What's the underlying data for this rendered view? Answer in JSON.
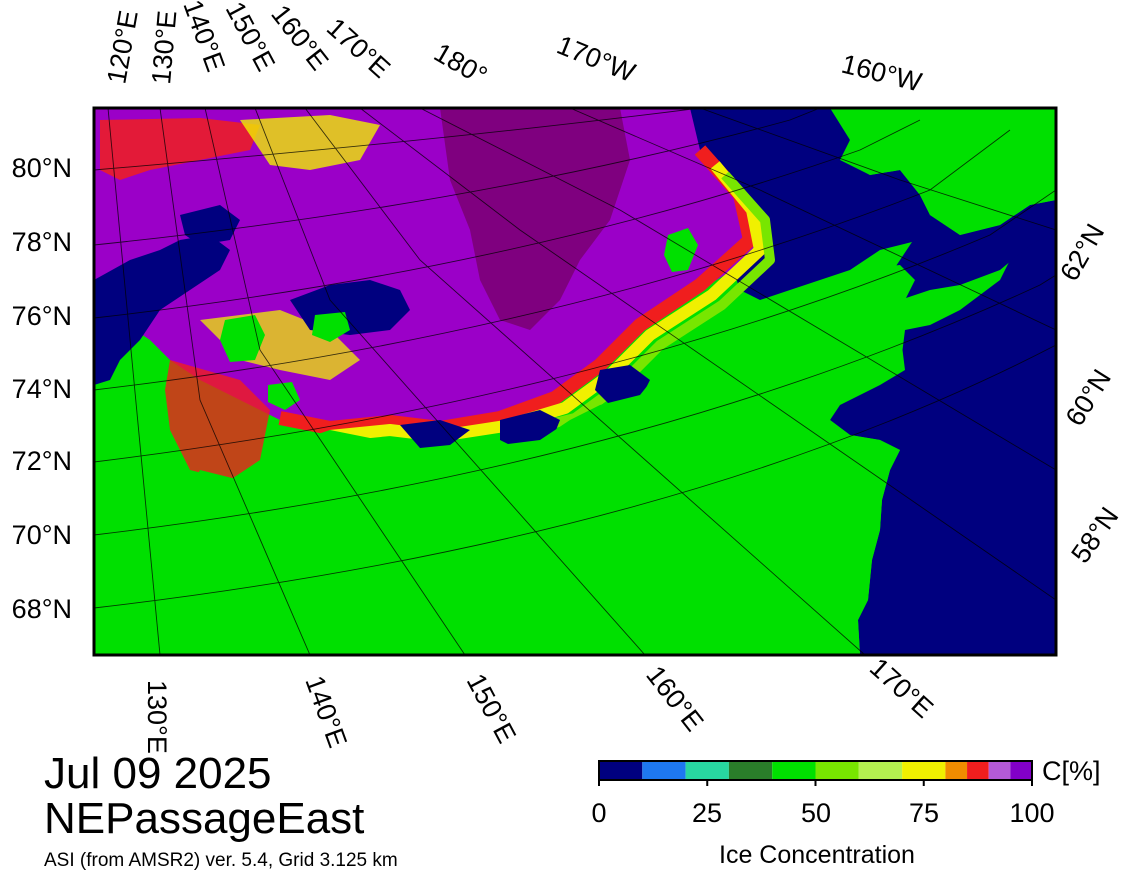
{
  "map": {
    "top_lon_labels": [
      "120°E",
      "130°E",
      "140°E",
      "150°E",
      "160°E",
      "170°E",
      "180°",
      "170°W",
      "160°W"
    ],
    "bottom_lon_labels": [
      "130°E",
      "140°E",
      "150°E",
      "160°E",
      "170°E"
    ],
    "left_lat_labels": [
      "80°N",
      "78°N",
      "76°N",
      "74°N",
      "72°N",
      "70°N",
      "68°N"
    ],
    "right_lat_labels": [
      "62°N",
      "60°N",
      "58°N"
    ],
    "colors": {
      "ocean_open": "#00007f",
      "land": "#00e000",
      "ice_high": "#9b00c8",
      "ice_max": "#7f007f"
    }
  },
  "title": {
    "date": "Jul 09 2025",
    "region": "NEPassageEast",
    "source": "ASI (from AMSR2) ver. 5.4,  Grid 3.125 km"
  },
  "legend": {
    "unit_label": "C[%]",
    "axis_label": "Ice Concentration",
    "ticks": [
      "0",
      "25",
      "50",
      "75",
      "100"
    ],
    "colors": [
      "#00007f",
      "#1e78f0",
      "#28d7a0",
      "#2a7d2a",
      "#00e000",
      "#78e600",
      "#b4f050",
      "#f0f000",
      "#f08c00",
      "#f01e1e",
      "#b45ad7",
      "#8200c8"
    ]
  }
}
